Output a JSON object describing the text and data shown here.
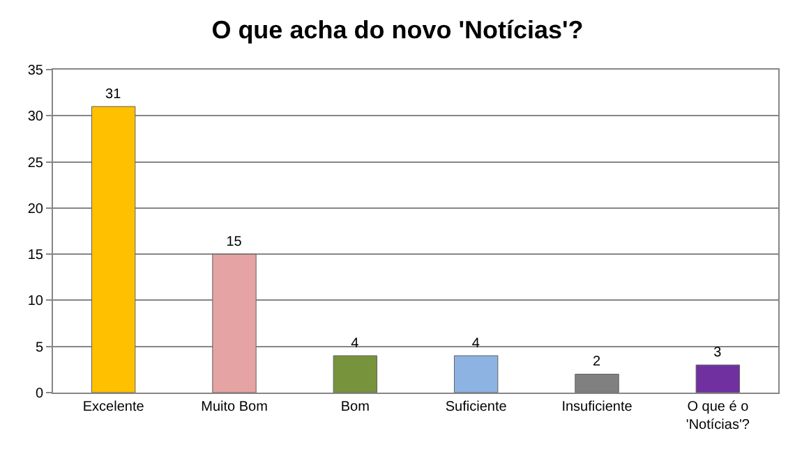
{
  "chart_data": {
    "type": "bar",
    "title": "O que acha do novo 'Notícias'?",
    "categories": [
      "Excelente",
      "Muito Bom",
      "Bom",
      "Suficiente",
      "Insuficiente",
      "O que é o 'Notícias'?"
    ],
    "values": [
      31,
      15,
      4,
      4,
      2,
      3
    ],
    "colors": [
      "#ffc000",
      "#e6a3a3",
      "#77933c",
      "#8db3e2",
      "#808080",
      "#7030a0"
    ],
    "ylim": [
      0,
      35
    ],
    "yticks": [
      0,
      5,
      10,
      15,
      20,
      25,
      30,
      35
    ],
    "grid": "y",
    "data_labels": true,
    "legend": false
  }
}
